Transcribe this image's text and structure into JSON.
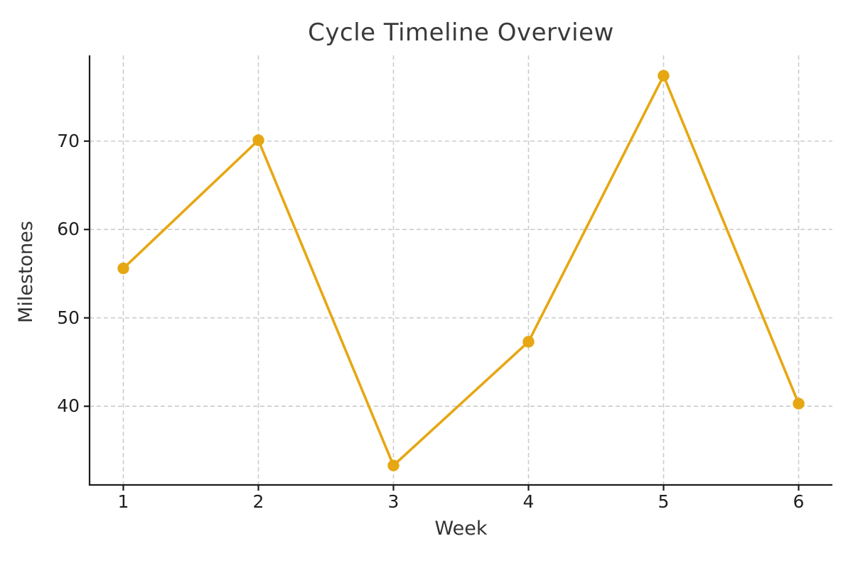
{
  "chart_data": {
    "type": "line",
    "title": "Cycle Timeline Overview",
    "xlabel": "Week",
    "ylabel": "Milestones",
    "x": [
      1,
      2,
      3,
      4,
      5,
      6
    ],
    "series": [
      {
        "name": "Milestones",
        "values": [
          55.6,
          70.1,
          33.3,
          47.3,
          77.4,
          40.3
        ]
      }
    ],
    "xticks": [
      1,
      2,
      3,
      4,
      5,
      6
    ],
    "yticks": [
      40,
      50,
      60,
      70
    ],
    "xlim": [
      0.75,
      6.25
    ],
    "ylim": [
      31.1,
      79.7
    ],
    "grid": true,
    "grid_style": "dashed",
    "legend_position": "none",
    "colors": {
      "line": "#E6A712",
      "marker": "#E6A712",
      "grid": "#cccccc",
      "spine": "#1c1c1c",
      "tick_text": "#1f1f1f",
      "title_text": "#3a3a3a",
      "background": "#ffffff"
    },
    "marker_shape": "circle"
  }
}
